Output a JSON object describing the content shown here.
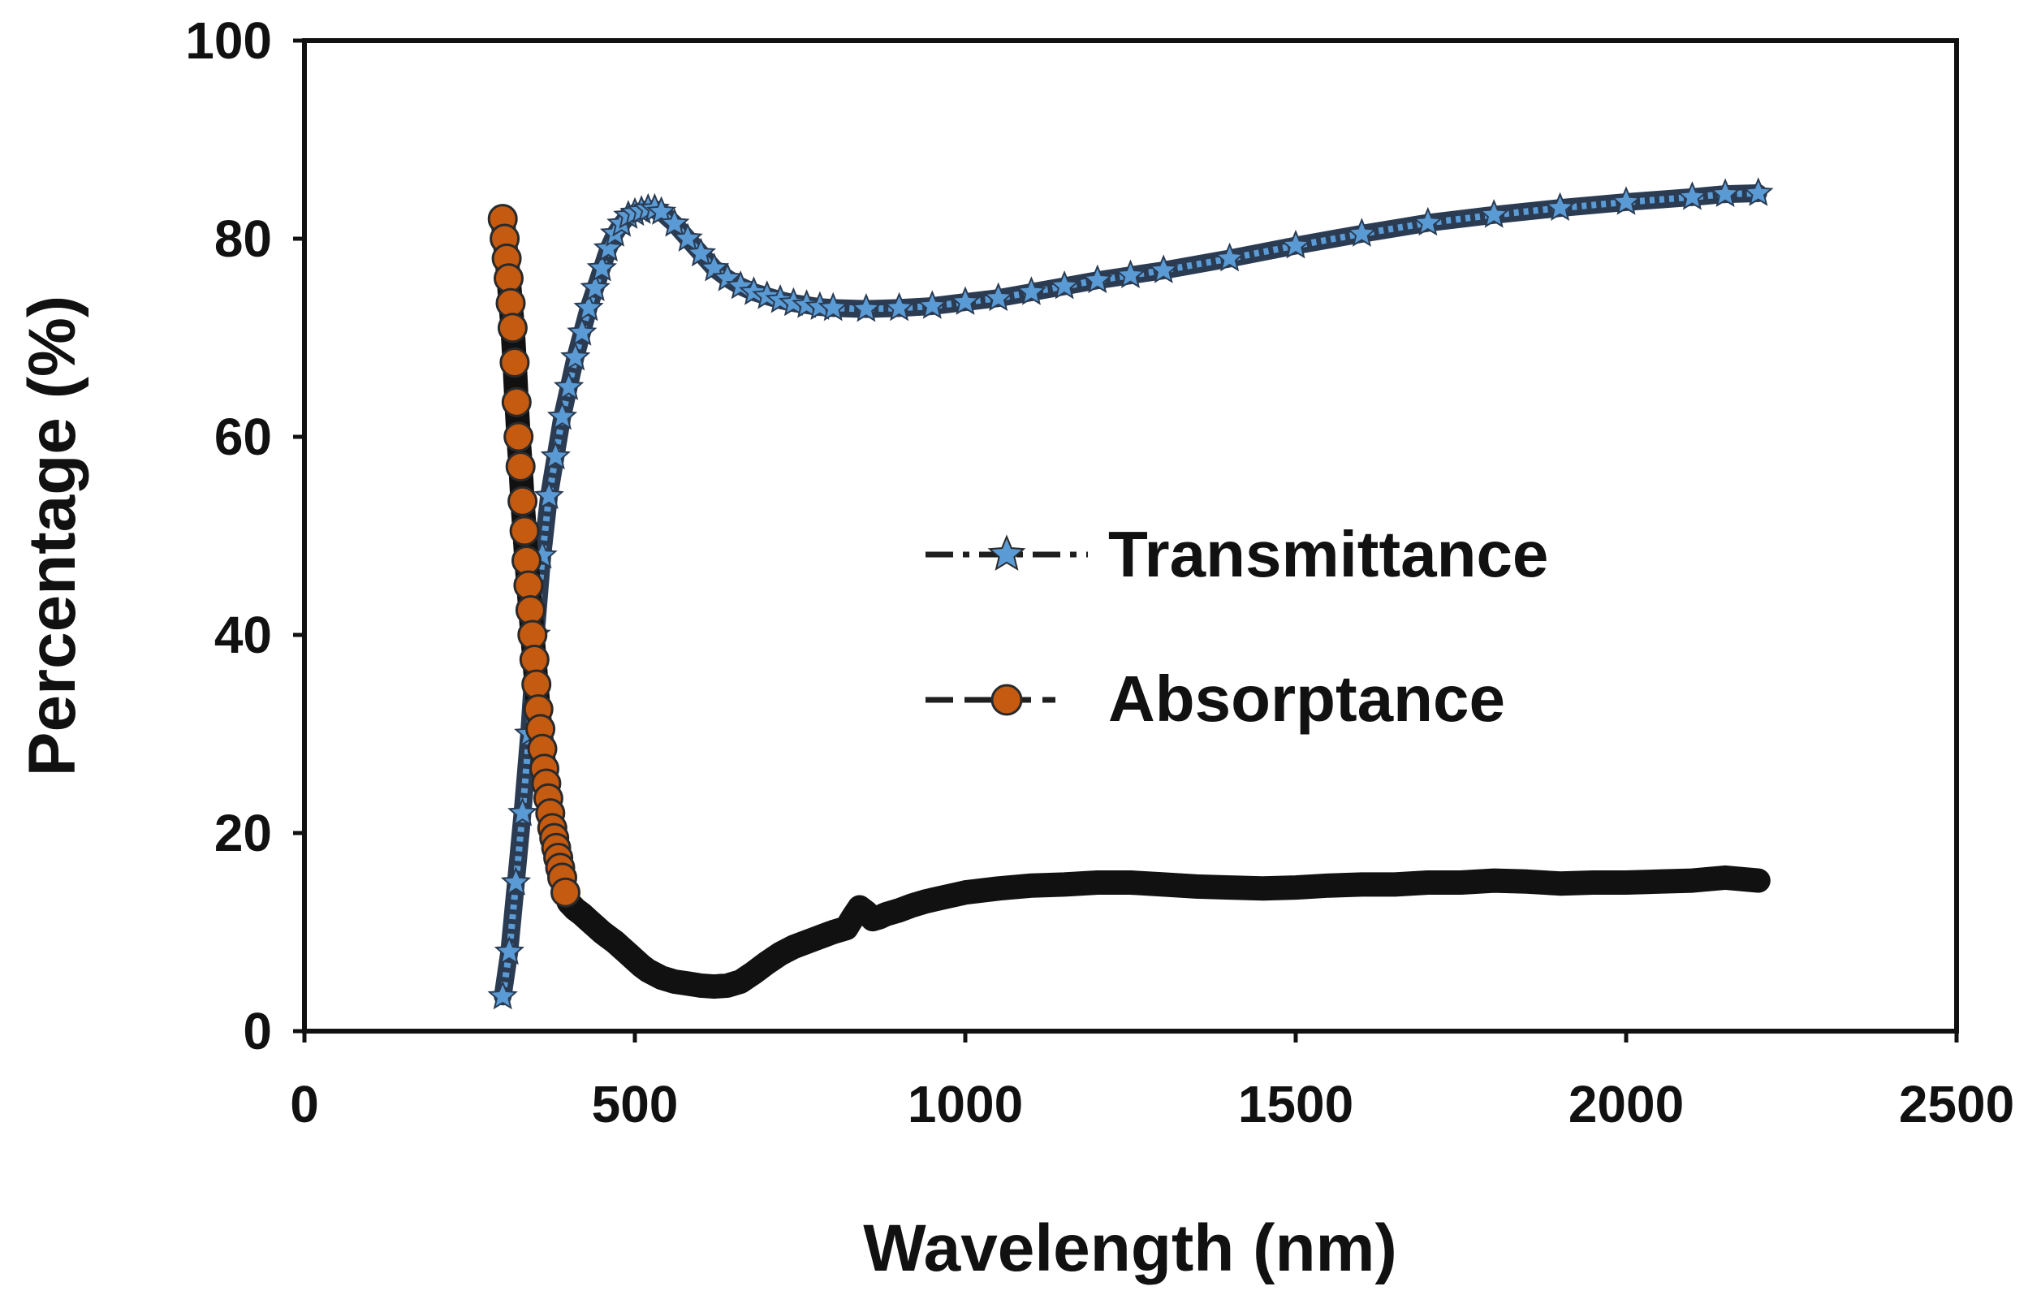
{
  "chart_data": {
    "type": "scatter",
    "title": "",
    "xlabel": "Wavelength (nm)",
    "ylabel": "Percentage (%)",
    "xlim": [
      0,
      2500
    ],
    "ylim": [
      0,
      100
    ],
    "xticks": [
      0,
      500,
      1000,
      1500,
      2000,
      2500
    ],
    "yticks": [
      0,
      20,
      40,
      60,
      80,
      100
    ],
    "grid": false,
    "legend_position": "center-right",
    "series": [
      {
        "name": "Transmittance",
        "marker": "star",
        "line_style": "dash-dot",
        "marker_color": "#5b9bd5",
        "line_color": "#1f1f1f",
        "x": [
          300,
          310,
          320,
          330,
          340,
          350,
          360,
          370,
          380,
          390,
          400,
          410,
          420,
          430,
          440,
          450,
          460,
          470,
          480,
          490,
          500,
          510,
          520,
          530,
          540,
          560,
          580,
          600,
          620,
          640,
          660,
          680,
          700,
          720,
          740,
          760,
          780,
          800,
          850,
          900,
          950,
          1000,
          1050,
          1100,
          1150,
          1200,
          1250,
          1300,
          1400,
          1500,
          1600,
          1700,
          1800,
          1900,
          2000,
          2100,
          2150,
          2200
        ],
        "y": [
          3.5,
          8,
          15,
          22,
          30,
          40,
          48,
          54,
          58,
          62,
          65,
          68,
          70.5,
          73,
          75,
          77,
          79,
          80.5,
          81.5,
          82.3,
          82.6,
          82.8,
          83,
          83,
          82.7,
          81.5,
          80,
          78.5,
          77,
          76,
          75.2,
          74.6,
          74.2,
          73.8,
          73.5,
          73.3,
          73.1,
          73,
          72.9,
          73,
          73.2,
          73.6,
          74,
          74.6,
          75.2,
          75.8,
          76.3,
          76.8,
          78,
          79.3,
          80.5,
          81.6,
          82.4,
          83.1,
          83.7,
          84.2,
          84.5,
          84.6
        ]
      },
      {
        "name": "Absorptance",
        "marker": "circle",
        "line_style": "dash",
        "marker_color": "#c55a11",
        "line_color": "#1f1f1f",
        "x": [
          300,
          303,
          306,
          309,
          312,
          315,
          318,
          321,
          324,
          327,
          330,
          333,
          336,
          339,
          342,
          345,
          348,
          351,
          354,
          357,
          360,
          363,
          366,
          369,
          372,
          375,
          378,
          381,
          384,
          387,
          390,
          395,
          400,
          410,
          420,
          430,
          440,
          450,
          460,
          470,
          480,
          490,
          500,
          510,
          520,
          540,
          560,
          580,
          600,
          620,
          640,
          660,
          680,
          700,
          720,
          740,
          760,
          780,
          800,
          820,
          830,
          840,
          850,
          860,
          870,
          880,
          900,
          920,
          940,
          960,
          980,
          1000,
          1050,
          1100,
          1150,
          1200,
          1250,
          1300,
          1350,
          1400,
          1450,
          1500,
          1550,
          1600,
          1650,
          1700,
          1750,
          1800,
          1850,
          1900,
          1950,
          2000,
          2050,
          2100,
          2150,
          2200
        ],
        "y": [
          82,
          80,
          78,
          76,
          73.5,
          71,
          67.5,
          63.5,
          60,
          57,
          53.5,
          50.5,
          47.5,
          45,
          42.5,
          40,
          37.5,
          35,
          32.5,
          30.5,
          28.5,
          26.5,
          25,
          23.5,
          22,
          20.5,
          19.5,
          18.5,
          17.5,
          16.5,
          15.5,
          14,
          13,
          12.3,
          11.8,
          11.2,
          10.6,
          10,
          9.5,
          9,
          8.4,
          7.8,
          7.2,
          6.6,
          6.1,
          5.4,
          5,
          4.8,
          4.6,
          4.5,
          4.6,
          5,
          5.9,
          6.9,
          7.8,
          8.5,
          9,
          9.5,
          10,
          10.4,
          11.5,
          12.5,
          12,
          11.3,
          11.5,
          11.8,
          12.2,
          12.7,
          13.1,
          13.4,
          13.7,
          14,
          14.4,
          14.7,
          14.8,
          15,
          15,
          14.8,
          14.6,
          14.5,
          14.4,
          14.5,
          14.7,
          14.8,
          14.8,
          15,
          15,
          15.2,
          15.1,
          14.9,
          15,
          15,
          15.1,
          15.2,
          15.5,
          15.2
        ]
      }
    ]
  }
}
